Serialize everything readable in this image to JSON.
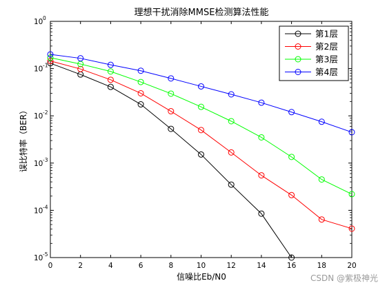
{
  "chart_data": {
    "type": "line",
    "title": "理想干扰消除MMSE检测算法性能",
    "xlabel": "信噪比Eb/N0",
    "ylabel": "误比特率（BER）",
    "xlim": [
      0,
      20
    ],
    "ylim": [
      1e-05,
      1
    ],
    "yscale": "log",
    "grid": false,
    "legend_position": "top-right",
    "x_ticks": [
      0,
      2,
      4,
      6,
      8,
      10,
      12,
      14,
      16,
      18,
      20
    ],
    "y_ticks": [
      {
        "value": 1,
        "base": "10",
        "exp": "0"
      },
      {
        "value": 0.1,
        "base": "10",
        "exp": "-1"
      },
      {
        "value": 0.01,
        "base": "10",
        "exp": "-2"
      },
      {
        "value": 0.001,
        "base": "10",
        "exp": "-3"
      },
      {
        "value": 0.0001,
        "base": "10",
        "exp": "-4"
      },
      {
        "value": 1e-05,
        "base": "10",
        "exp": "-5"
      }
    ],
    "series": [
      {
        "name": "第1层",
        "color": "#000000",
        "marker": "circle",
        "x": [
          0,
          2,
          4,
          6,
          8,
          10,
          12,
          14,
          16
        ],
        "y": [
          0.13,
          0.075,
          0.041,
          0.0175,
          0.0053,
          0.00152,
          0.00035,
          8.5e-05,
          1e-05
        ]
      },
      {
        "name": "第2层",
        "color": "#ff0000",
        "marker": "circle",
        "x": [
          0,
          2,
          4,
          6,
          8,
          10,
          12,
          14,
          16,
          18,
          20
        ],
        "y": [
          0.145,
          0.098,
          0.058,
          0.03,
          0.0125,
          0.005,
          0.00168,
          0.00055,
          0.00021,
          6.4e-05,
          4.1e-05
        ]
      },
      {
        "name": "第3层",
        "color": "#00ff00",
        "marker": "circle",
        "x": [
          0,
          2,
          4,
          6,
          8,
          10,
          12,
          14,
          16,
          18,
          20
        ],
        "y": [
          0.17,
          0.125,
          0.087,
          0.052,
          0.0295,
          0.0155,
          0.0077,
          0.0035,
          0.00135,
          0.00045,
          0.00022
        ]
      },
      {
        "name": "第4层",
        "color": "#0000ff",
        "marker": "circle",
        "x": [
          0,
          2,
          4,
          6,
          8,
          10,
          12,
          14,
          16,
          18,
          20
        ],
        "y": [
          0.2,
          0.165,
          0.12,
          0.09,
          0.062,
          0.042,
          0.0285,
          0.019,
          0.012,
          0.0075,
          0.0045
        ]
      }
    ]
  },
  "watermark": {
    "text": "CSDN @紫极神光"
  }
}
